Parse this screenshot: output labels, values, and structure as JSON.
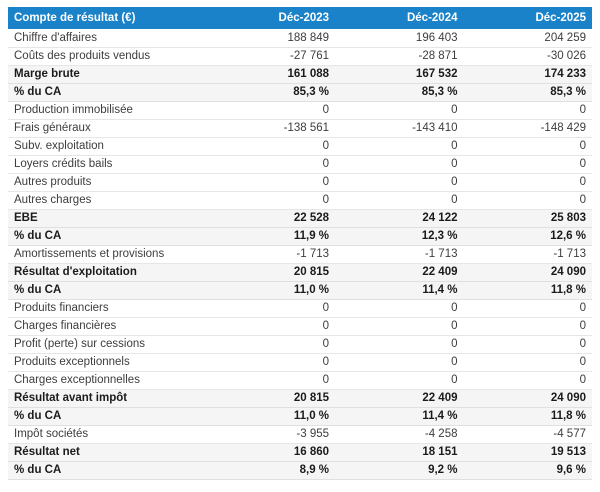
{
  "chart_data": {
    "type": "table",
    "title": "Compte de résultat (€)",
    "columns": [
      "Déc-2023",
      "Déc-2024",
      "Déc-2025"
    ],
    "rows": [
      {
        "label": "Chiffre d'affaires",
        "values": [
          "188 849",
          "196 403",
          "204 259"
        ],
        "bold": false
      },
      {
        "label": "Coûts des produits vendus",
        "values": [
          "-27 761",
          "-28 871",
          "-30 026"
        ],
        "bold": false
      },
      {
        "label": "Marge brute",
        "values": [
          "161 088",
          "167 532",
          "174 233"
        ],
        "bold": true
      },
      {
        "label": "% du CA",
        "values": [
          "85,3 %",
          "85,3 %",
          "85,3 %"
        ],
        "bold": true
      },
      {
        "label": "Production immobilisée",
        "values": [
          "0",
          "0",
          "0"
        ],
        "bold": false
      },
      {
        "label": "Frais généraux",
        "values": [
          "-138 561",
          "-143 410",
          "-148 429"
        ],
        "bold": false
      },
      {
        "label": "Subv. exploitation",
        "values": [
          "0",
          "0",
          "0"
        ],
        "bold": false
      },
      {
        "label": "Loyers crédits bails",
        "values": [
          "0",
          "0",
          "0"
        ],
        "bold": false
      },
      {
        "label": "Autres produits",
        "values": [
          "0",
          "0",
          "0"
        ],
        "bold": false
      },
      {
        "label": "Autres charges",
        "values": [
          "0",
          "0",
          "0"
        ],
        "bold": false
      },
      {
        "label": "EBE",
        "values": [
          "22 528",
          "24 122",
          "25 803"
        ],
        "bold": true
      },
      {
        "label": "% du CA",
        "values": [
          "11,9 %",
          "12,3 %",
          "12,6 %"
        ],
        "bold": true
      },
      {
        "label": "Amortissements et provisions",
        "values": [
          "-1 713",
          "-1 713",
          "-1 713"
        ],
        "bold": false
      },
      {
        "label": "Résultat d'exploitation",
        "values": [
          "20 815",
          "22 409",
          "24 090"
        ],
        "bold": true
      },
      {
        "label": "% du CA",
        "values": [
          "11,0 %",
          "11,4 %",
          "11,8 %"
        ],
        "bold": true
      },
      {
        "label": "Produits financiers",
        "values": [
          "0",
          "0",
          "0"
        ],
        "bold": false
      },
      {
        "label": "Charges financières",
        "values": [
          "0",
          "0",
          "0"
        ],
        "bold": false
      },
      {
        "label": "Profit (perte) sur cessions",
        "values": [
          "0",
          "0",
          "0"
        ],
        "bold": false
      },
      {
        "label": "Produits exceptionnels",
        "values": [
          "0",
          "0",
          "0"
        ],
        "bold": false
      },
      {
        "label": "Charges exceptionnelles",
        "values": [
          "0",
          "0",
          "0"
        ],
        "bold": false
      },
      {
        "label": "Résultat avant impôt",
        "values": [
          "20 815",
          "22 409",
          "24 090"
        ],
        "bold": true
      },
      {
        "label": "% du CA",
        "values": [
          "11,0 %",
          "11,4 %",
          "11,8 %"
        ],
        "bold": true
      },
      {
        "label": "Impôt sociétés",
        "values": [
          "-3 955",
          "-4 258",
          "-4 577"
        ],
        "bold": false
      },
      {
        "label": "Résultat net",
        "values": [
          "16 860",
          "18 151",
          "19 513"
        ],
        "bold": true
      },
      {
        "label": "% du CA",
        "values": [
          "8,9 %",
          "9,2 %",
          "9,6 %"
        ],
        "bold": true
      }
    ]
  },
  "colors": {
    "header_bg": "#1a82c8",
    "header_text": "#ffffff",
    "shaded_row_bg": "#f5f5f5",
    "row_border": "#e6e6e6",
    "text": "#3d3d3d",
    "bold_text": "#1b1b1b"
  }
}
